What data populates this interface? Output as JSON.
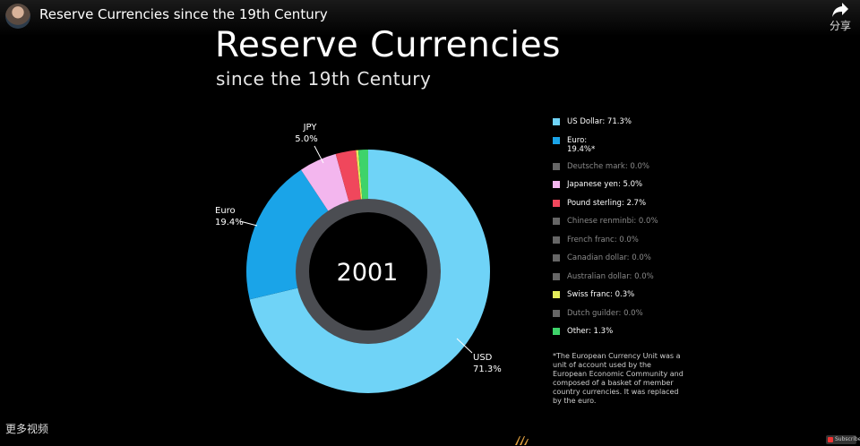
{
  "video": {
    "title": "Reserve Currencies since the 19th Century",
    "share_label": "分享",
    "more_videos_label": "更多视频",
    "subscribe_label": "Subscribe"
  },
  "chart_data": {
    "type": "pie",
    "title": "Reserve Currencies",
    "subtitle": "since the 19th Century",
    "center_label": "2001",
    "donut": true,
    "slices": [
      {
        "name": "US Dollar",
        "legend_label": "US Dollar: 71.3%",
        "value": 71.3,
        "color": "#6fd3f7"
      },
      {
        "name": "Euro",
        "legend_label": "Euro:",
        "legend_label_2": "19.4%*",
        "value": 19.4,
        "color": "#1aa4e8"
      },
      {
        "name": "Deutsche mark",
        "legend_label": "Deutsche mark: 0.0%",
        "value": 0.0,
        "color": "#666666"
      },
      {
        "name": "Japanese yen",
        "legend_label": "Japanese yen: 5.0%",
        "value": 5.0,
        "color": "#f3b6ee"
      },
      {
        "name": "Pound sterling",
        "legend_label": "Pound sterling: 2.7%",
        "value": 2.7,
        "color": "#f0475c"
      },
      {
        "name": "Chinese renminbi",
        "legend_label": "Chinese renminbi: 0.0%",
        "value": 0.0,
        "color": "#666666"
      },
      {
        "name": "French franc",
        "legend_label": "French franc: 0.0%",
        "value": 0.0,
        "color": "#666666"
      },
      {
        "name": "Canadian dollar",
        "legend_label": "Canadian dollar: 0.0%",
        "value": 0.0,
        "color": "#666666"
      },
      {
        "name": "Australian dollar",
        "legend_label": "Australian dollar: 0.0%",
        "value": 0.0,
        "color": "#666666"
      },
      {
        "name": "Swiss franc",
        "legend_label": "Swiss franc: 0.3%",
        "value": 0.3,
        "color": "#e3ec5a"
      },
      {
        "name": "Dutch guilder",
        "legend_label": "Dutch guilder: 0.0%",
        "value": 0.0,
        "color": "#666666"
      },
      {
        "name": "Other",
        "legend_label": "Other: 1.3%",
        "value": 1.3,
        "color": "#3ed36a"
      }
    ],
    "callouts": [
      {
        "name": "JPY",
        "value_label": "5.0%"
      },
      {
        "name": "Euro",
        "value_label": "19.4%"
      },
      {
        "name": "USD",
        "value_label": "71.3%"
      }
    ],
    "footnote": "*The European Currency Unit was a unit of account used by the European Economic Community and composed of a basket of member country currencies. It was replaced by the euro.",
    "legend_position": "right"
  }
}
